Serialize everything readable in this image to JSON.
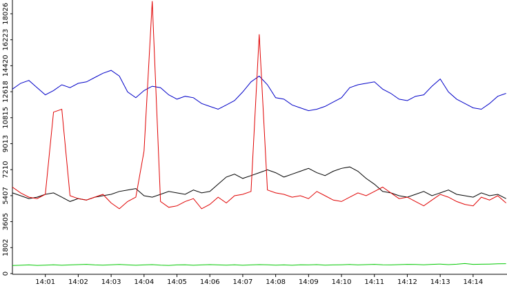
{
  "chart_data": {
    "type": "line",
    "x": [
      840,
      840.25,
      840.5,
      840.75,
      841,
      841.25,
      841.5,
      841.75,
      842,
      842.25,
      842.5,
      842.75,
      843,
      843.25,
      843.5,
      843.75,
      844,
      844.25,
      844.5,
      844.75,
      845,
      845.25,
      845.5,
      845.75,
      846,
      846.25,
      846.5,
      846.75,
      847,
      847.25,
      847.5,
      847.75,
      848,
      848.25,
      848.5,
      848.75,
      849,
      849.25,
      849.5,
      849.75,
      850,
      850.25,
      850.5,
      850.75,
      851,
      851.25,
      851.5,
      851.75,
      852,
      852.25,
      852.5,
      852.75,
      853,
      853.25,
      853.5,
      853.75,
      854,
      854.25,
      854.5,
      854.75,
      855
    ],
    "series": [
      {
        "color": "#0000c8",
        "values": [
          12800,
          13200,
          13400,
          12900,
          12400,
          12700,
          13100,
          12900,
          13200,
          13300,
          13600,
          13900,
          14100,
          13700,
          12600,
          12200,
          12700,
          13000,
          12900,
          12400,
          12100,
          12300,
          12200,
          11800,
          11600,
          11400,
          11700,
          12000,
          12600,
          13300,
          13700,
          13100,
          12200,
          12100,
          11700,
          11500,
          11300,
          11400,
          11600,
          11900,
          12200,
          12900,
          13100,
          13200,
          13300,
          12800,
          12500,
          12100,
          12000,
          12300,
          12400,
          13000,
          13500,
          12600,
          12100,
          11800,
          11500,
          11400,
          11800,
          12300,
          12500
        ]
      },
      {
        "color": "#000000",
        "values": [
          5600,
          5400,
          5200,
          5300,
          5500,
          5600,
          5300,
          5000,
          5200,
          5100,
          5300,
          5400,
          5500,
          5700,
          5800,
          5900,
          5400,
          5300,
          5500,
          5700,
          5600,
          5500,
          5800,
          5600,
          5700,
          6200,
          6700,
          6900,
          6600,
          6800,
          7000,
          7200,
          7000,
          6700,
          6900,
          7100,
          7300,
          7000,
          6800,
          7100,
          7300,
          7400,
          7100,
          6600,
          6200,
          5700,
          5600,
          5400,
          5300,
          5500,
          5700,
          5400,
          5600,
          5800,
          5500,
          5400,
          5300,
          5600,
          5400,
          5500,
          5200
        ]
      },
      {
        "color": "#e00000",
        "values": [
          6000,
          5600,
          5300,
          5200,
          5500,
          11200,
          11400,
          5400,
          5200,
          5100,
          5300,
          5500,
          4900,
          4500,
          5000,
          5300,
          8500,
          18900,
          5000,
          4600,
          4700,
          5000,
          5200,
          4500,
          4800,
          5300,
          4900,
          5400,
          5500,
          5700,
          16600,
          5800,
          5600,
          5500,
          5300,
          5400,
          5200,
          5700,
          5400,
          5100,
          5000,
          5300,
          5600,
          5400,
          5700,
          6000,
          5600,
          5200,
          5300,
          5000,
          4700,
          5100,
          5500,
          5300,
          5000,
          4800,
          4700,
          5300,
          5100,
          5400,
          4900
        ]
      },
      {
        "color": "#00c800",
        "values": [
          560,
          580,
          600,
          570,
          590,
          610,
          580,
          600,
          620,
          640,
          600,
          590,
          610,
          630,
          600,
          580,
          600,
          620,
          590,
          570,
          600,
          610,
          580,
          600,
          620,
          600,
          590,
          610,
          580,
          600,
          620,
          610,
          590,
          600,
          580,
          610,
          600,
          620,
          590,
          600,
          610,
          630,
          600,
          620,
          640,
          610,
          600,
          620,
          640,
          630,
          610,
          640,
          660,
          620,
          650,
          700,
          640,
          650,
          660,
          680,
          690
        ]
      }
    ],
    "xlim": [
      840,
      855.03
    ],
    "xticks": [
      {
        "value": 841,
        "label": "14:01"
      },
      {
        "value": 842,
        "label": "14:02"
      },
      {
        "value": 843,
        "label": "14:03"
      },
      {
        "value": 844,
        "label": "14:04"
      },
      {
        "value": 845,
        "label": "14:05"
      },
      {
        "value": 846,
        "label": "14:06"
      },
      {
        "value": 847,
        "label": "14:07"
      },
      {
        "value": 848,
        "label": "14:08"
      },
      {
        "value": 849,
        "label": "14:09"
      },
      {
        "value": 850,
        "label": "14:10"
      },
      {
        "value": 851,
        "label": "14:11"
      },
      {
        "value": 852,
        "label": "14:12"
      },
      {
        "value": 853,
        "label": "14:13"
      },
      {
        "value": 854,
        "label": "14:14"
      }
    ],
    "ylim": [
      0,
      18980
    ],
    "yticks": [
      0,
      1802,
      3605,
      5407,
      7210,
      9013,
      10815,
      12618,
      14420,
      16223,
      18026
    ]
  }
}
